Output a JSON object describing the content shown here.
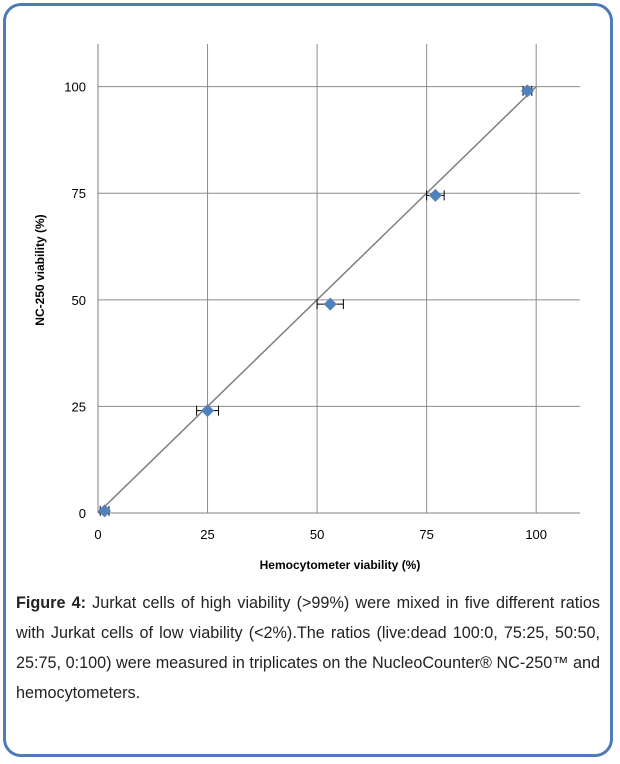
{
  "caption": {
    "label": "Figure 4:",
    "text": " Jurkat cells of high viability (>99%) were mixed in five different ratios with Jurkat cells of low viability (<2%).The ratios (live:dead 100:0, 75:25, 50:50, 25:75, 0:100) were measured in triplicates on the NucleoCounter® NC-250™ and hemocytometers."
  },
  "colors": {
    "frame": "#4f7cb8",
    "marker": "#4f81bd",
    "grid": "#8c8c8c",
    "line": "#7f7f7f"
  },
  "chart_data": {
    "type": "scatter",
    "title": "",
    "xlabel": "Hemocytometer viability (%)",
    "ylabel": "NC-250 viability (%)",
    "xlim": [
      0,
      110
    ],
    "ylim": [
      0,
      110
    ],
    "xticks": [
      0,
      25,
      50,
      75,
      100
    ],
    "yticks": [
      0,
      25,
      50,
      75,
      100
    ],
    "grid": true,
    "legend": "none",
    "series": [
      {
        "x": [
          1.5,
          25,
          53,
          77,
          98
        ],
        "y": [
          0.5,
          24,
          49,
          74.5,
          99
        ],
        "x_error": [
          1,
          2.5,
          3,
          2,
          1
        ],
        "marker": "diamond"
      }
    ],
    "trendline": {
      "x": [
        0,
        100
      ],
      "y": [
        0,
        100
      ]
    }
  }
}
